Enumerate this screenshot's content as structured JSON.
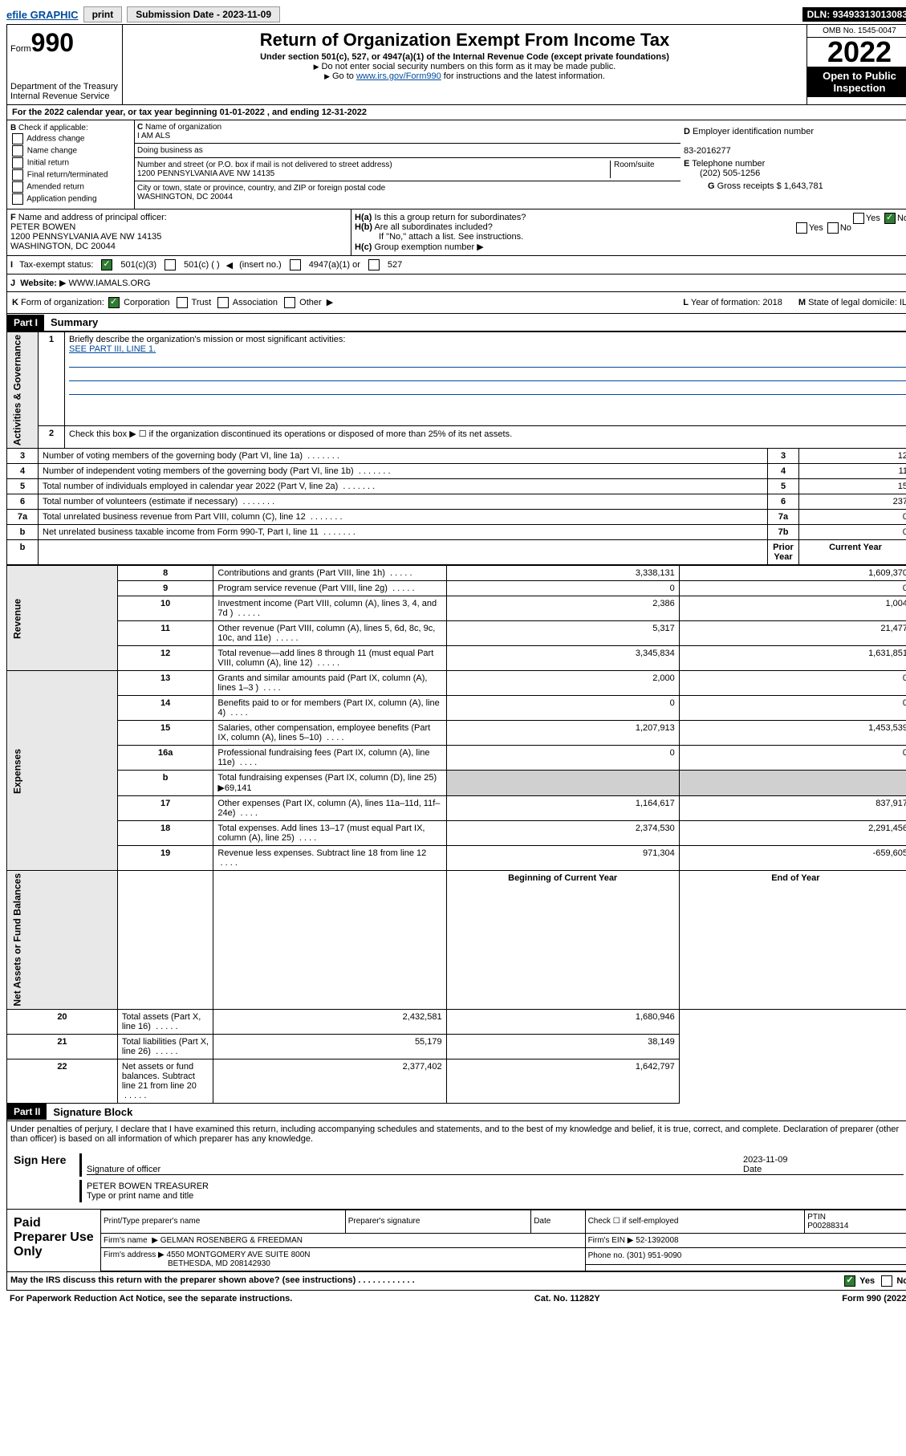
{
  "topbar": {
    "efile": "efile GRAPHIC",
    "print": "print",
    "sub_label": "Submission Date - 2023-11-09",
    "dln": "DLN: 93493313013083"
  },
  "header": {
    "form_prefix": "Form",
    "form_num": "990",
    "dept": "Department of the Treasury",
    "irs": "Internal Revenue Service",
    "title": "Return of Organization Exempt From Income Tax",
    "subtitle": "Under section 501(c), 527, or 4947(a)(1) of the Internal Revenue Code (except private foundations)",
    "note1": "Do not enter social security numbers on this form as it may be made public.",
    "note2_pre": "Go to ",
    "note2_link": "www.irs.gov/Form990",
    "note2_post": " for instructions and the latest information.",
    "omb": "OMB No. 1545-0047",
    "year": "2022",
    "public": "Open to Public Inspection"
  },
  "line_a": "For the 2022 calendar year, or tax year beginning 01-01-2022  , and ending 12-31-2022",
  "section_b": {
    "b_label": "Check if applicable:",
    "opts": [
      "Address change",
      "Name change",
      "Initial return",
      "Final return/terminated",
      "Amended return",
      "Application pending"
    ],
    "c_label": "Name of organization",
    "c_name": "I AM ALS",
    "dba_label": "Doing business as",
    "addr_label": "Number and street (or P.O. box if mail is not delivered to street address)",
    "room_label": "Room/suite",
    "addr": "1200 PENNSYLVANIA AVE NW 14135",
    "city_label": "City or town, state or province, country, and ZIP or foreign postal code",
    "city": "WASHINGTON, DC  20044",
    "d_label": "Employer identification number",
    "ein": "83-2016277",
    "e_label": "Telephone number",
    "phone": "(202) 505-1256",
    "g_label": "Gross receipts $",
    "gross": "1,643,781"
  },
  "officer": {
    "f_label": "Name and address of principal officer:",
    "name": "PETER BOWEN",
    "addr1": "1200 PENNSYLVANIA AVE NW 14135",
    "addr2": "WASHINGTON, DC  20044",
    "ha": "Is this a group return for subordinates?",
    "hb": "Are all subordinates included?",
    "hb_note": "If \"No,\" attach a list. See instructions.",
    "hc": "Group exemption number",
    "yes": "Yes",
    "no": "No"
  },
  "line_i": {
    "label": "Tax-exempt status:",
    "o1": "501(c)(3)",
    "o2": "501(c) (  )",
    "o2b": "(insert no.)",
    "o3": "4947(a)(1) or",
    "o4": "527"
  },
  "line_j": {
    "label": "Website:",
    "val": "WWW.IAMALS.ORG"
  },
  "line_k": {
    "label": "Form of organization:",
    "opts": [
      "Corporation",
      "Trust",
      "Association",
      "Other"
    ],
    "l_label": "Year of formation:",
    "l_val": "2018",
    "m_label": "State of legal domicile:",
    "m_val": "IL"
  },
  "part1": {
    "hdr": "Part I",
    "title": "Summary",
    "q1": "Briefly describe the organization's mission or most significant activities:",
    "q1_val": "SEE PART III, LINE 1.",
    "q2": "Check this box ▶ ☐  if the organization discontinued its operations or disposed of more than 25% of its net assets.",
    "vlabs": {
      "ag": "Activities & Governance",
      "rev": "Revenue",
      "exp": "Expenses",
      "na": "Net Assets or Fund Balances"
    },
    "cols": {
      "prior": "Prior Year",
      "curr": "Current Year",
      "beg": "Beginning of Current Year",
      "end": "End of Year"
    },
    "rows_top": [
      {
        "n": "3",
        "t": "Number of voting members of the governing body (Part VI, line 1a)",
        "box": "3",
        "v": "12"
      },
      {
        "n": "4",
        "t": "Number of independent voting members of the governing body (Part VI, line 1b)",
        "box": "4",
        "v": "11"
      },
      {
        "n": "5",
        "t": "Total number of individuals employed in calendar year 2022 (Part V, line 2a)",
        "box": "5",
        "v": "15"
      },
      {
        "n": "6",
        "t": "Total number of volunteers (estimate if necessary)",
        "box": "6",
        "v": "237"
      },
      {
        "n": "7a",
        "t": "Total unrelated business revenue from Part VIII, column (C), line 12",
        "box": "7a",
        "v": "0"
      },
      {
        "n": "b",
        "t": "Net unrelated business taxable income from Form 990-T, Part I, line 11",
        "box": "7b",
        "v": "0"
      }
    ],
    "rows_rev": [
      {
        "n": "8",
        "t": "Contributions and grants (Part VIII, line 1h)",
        "p": "3,338,131",
        "c": "1,609,370"
      },
      {
        "n": "9",
        "t": "Program service revenue (Part VIII, line 2g)",
        "p": "0",
        "c": "0"
      },
      {
        "n": "10",
        "t": "Investment income (Part VIII, column (A), lines 3, 4, and 7d )",
        "p": "2,386",
        "c": "1,004"
      },
      {
        "n": "11",
        "t": "Other revenue (Part VIII, column (A), lines 5, 6d, 8c, 9c, 10c, and 11e)",
        "p": "5,317",
        "c": "21,477"
      },
      {
        "n": "12",
        "t": "Total revenue—add lines 8 through 11 (must equal Part VIII, column (A), line 12)",
        "p": "3,345,834",
        "c": "1,631,851"
      }
    ],
    "rows_exp": [
      {
        "n": "13",
        "t": "Grants and similar amounts paid (Part IX, column (A), lines 1–3 )",
        "p": "2,000",
        "c": "0"
      },
      {
        "n": "14",
        "t": "Benefits paid to or for members (Part IX, column (A), line 4)",
        "p": "0",
        "c": "0"
      },
      {
        "n": "15",
        "t": "Salaries, other compensation, employee benefits (Part IX, column (A), lines 5–10)",
        "p": "1,207,913",
        "c": "1,453,539"
      },
      {
        "n": "16a",
        "t": "Professional fundraising fees (Part IX, column (A), line 11e)",
        "p": "0",
        "c": "0"
      },
      {
        "n": "b",
        "t": "Total fundraising expenses (Part IX, column (D), line 25) ▶69,141",
        "p": "",
        "c": "",
        "gray": true
      },
      {
        "n": "17",
        "t": "Other expenses (Part IX, column (A), lines 11a–11d, 11f–24e)",
        "p": "1,164,617",
        "c": "837,917"
      },
      {
        "n": "18",
        "t": "Total expenses. Add lines 13–17 (must equal Part IX, column (A), line 25)",
        "p": "2,374,530",
        "c": "2,291,456"
      },
      {
        "n": "19",
        "t": "Revenue less expenses. Subtract line 18 from line 12",
        "p": "971,304",
        "c": "-659,605"
      }
    ],
    "rows_na": [
      {
        "n": "20",
        "t": "Total assets (Part X, line 16)",
        "p": "2,432,581",
        "c": "1,680,946"
      },
      {
        "n": "21",
        "t": "Total liabilities (Part X, line 26)",
        "p": "55,179",
        "c": "38,149"
      },
      {
        "n": "22",
        "t": "Net assets or fund balances. Subtract line 21 from line 20",
        "p": "2,377,402",
        "c": "1,642,797"
      }
    ]
  },
  "part2": {
    "hdr": "Part II",
    "title": "Signature Block",
    "decl": "Under penalties of perjury, I declare that I have examined this return, including accompanying schedules and statements, and to the best of my knowledge and belief, it is true, correct, and complete. Declaration of preparer (other than officer) is based on all information of which preparer has any knowledge.",
    "sign": "Sign Here",
    "sig_off": "Signature of officer",
    "date_label": "Date",
    "date": "2023-11-09",
    "name_title": "PETER BOWEN  TREASURER",
    "type_label": "Type or print name and title"
  },
  "prep": {
    "label": "Paid Preparer Use Only",
    "cols": {
      "name": "Print/Type preparer's name",
      "sig": "Preparer's signature",
      "date": "Date",
      "check": "Check ☐ if self-employed",
      "ptin_l": "PTIN",
      "ptin": "P00288314"
    },
    "firm_l": "Firm's name",
    "firm": "GELMAN ROSENBERG & FREEDMAN",
    "ein_l": "Firm's EIN",
    "ein": "52-1392008",
    "addr_l": "Firm's address",
    "addr": "4550 MONTGOMERY AVE SUITE 800N",
    "addr2": "BETHESDA, MD  208142930",
    "phone_l": "Phone no.",
    "phone": "(301) 951-9090"
  },
  "footer": {
    "q": "May the IRS discuss this return with the preparer shown above? (see instructions)",
    "yes": "Yes",
    "no": "No",
    "pra": "For Paperwork Reduction Act Notice, see the separate instructions.",
    "cat": "Cat. No. 11282Y",
    "form": "Form 990 (2022)"
  }
}
